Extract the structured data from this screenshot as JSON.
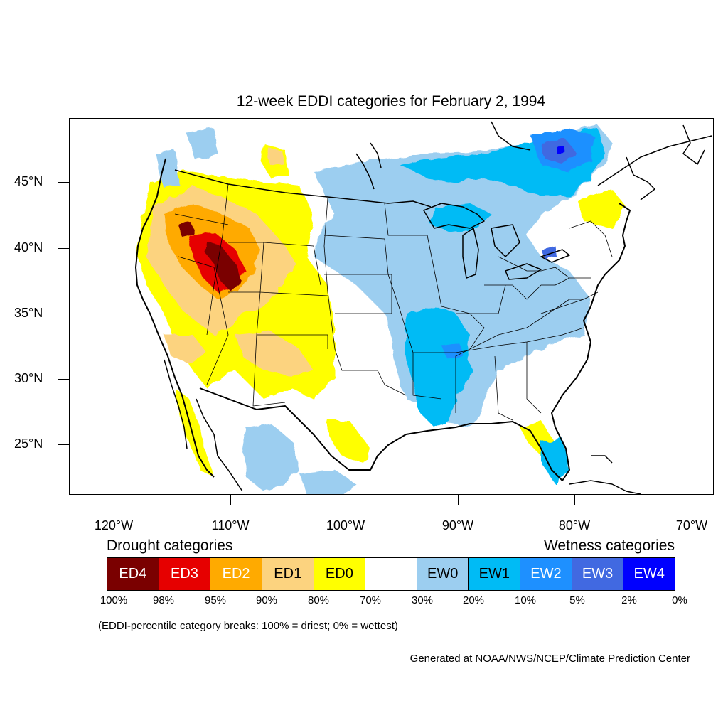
{
  "title": "12-week EDDI categories for February 2, 1994",
  "lat_labels": [
    "45°N",
    "40°N",
    "35°N",
    "30°N",
    "25°N"
  ],
  "lon_labels": [
    "120°W",
    "110°W",
    "100°W",
    "90°W",
    "80°W",
    "70°W"
  ],
  "legend": {
    "drought_heading": "Drought categories",
    "wetness_heading": "Wetness categories",
    "categories": [
      {
        "label": "ED4",
        "color": "#7a0000",
        "text_color": "#ffffff"
      },
      {
        "label": "ED3",
        "color": "#e60000",
        "text_color": "#ffffff"
      },
      {
        "label": "ED2",
        "color": "#ffaa00",
        "text_color": "#ffffff"
      },
      {
        "label": "ED1",
        "color": "#fcd37f",
        "text_color": "#000000"
      },
      {
        "label": "ED0",
        "color": "#ffff00",
        "text_color": "#000000"
      },
      {
        "label": "",
        "color": "#ffffff",
        "text_color": "#000000"
      },
      {
        "label": "EW0",
        "color": "#9ccef0",
        "text_color": "#000000"
      },
      {
        "label": "EW1",
        "color": "#00bbf5",
        "text_color": "#000000"
      },
      {
        "label": "EW2",
        "color": "#1e90ff",
        "text_color": "#ffffff"
      },
      {
        "label": "EW3",
        "color": "#4169e1",
        "text_color": "#ffffff"
      },
      {
        "label": "EW4",
        "color": "#0000ff",
        "text_color": "#ffffff"
      }
    ],
    "breaks": [
      "100%",
      "98%",
      "95%",
      "90%",
      "80%",
      "70%",
      "30%",
      "20%",
      "10%",
      "5%",
      "2%",
      "0%"
    ]
  },
  "note": "(EDDI-percentile category breaks: 100% = driest; 0% = wettest)",
  "credit": "Generated at NOAA/NWS/NCEP/Climate Prediction Center"
}
